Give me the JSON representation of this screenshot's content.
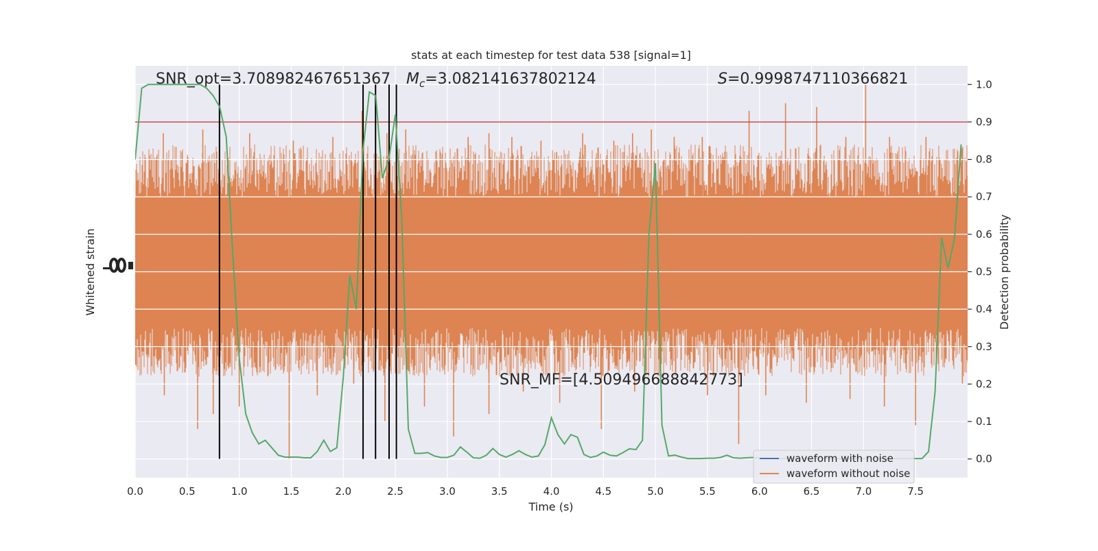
{
  "chart_data": {
    "type": "line",
    "title": "stats at each timestep for test data 538 [signal=1]",
    "xlabel": "Time (s)",
    "ylabel_left": "Whitened strain",
    "ylabel_right": "Detection probability",
    "xlim": [
      0.0,
      8.0
    ],
    "ylim_right": [
      -0.05,
      1.05
    ],
    "x_ticks": [
      "0.0",
      "0.5",
      "1.0",
      "1.5",
      "2.0",
      "2.5",
      "3.0",
      "3.5",
      "4.0",
      "4.5",
      "5.0",
      "5.5",
      "6.0",
      "6.5",
      "7.0",
      "7.5"
    ],
    "x_tick_values": [
      0.0,
      0.5,
      1.0,
      1.5,
      2.0,
      2.5,
      3.0,
      3.5,
      4.0,
      4.5,
      5.0,
      5.5,
      6.0,
      6.5,
      7.0,
      7.5
    ],
    "y_right_ticks": [
      "0.0",
      "0.1",
      "0.2",
      "0.3",
      "0.4",
      "0.5",
      "0.6",
      "0.7",
      "0.8",
      "0.9",
      "1.0"
    ],
    "y_right_tick_values": [
      0.0,
      0.1,
      0.2,
      0.3,
      0.4,
      0.5,
      0.6,
      0.7,
      0.8,
      0.9,
      1.0
    ],
    "grid": true,
    "legend_placement": "lower-right",
    "legend": [
      {
        "label": "waveform with noise",
        "color": "#4c72b0"
      },
      {
        "label": "waveform without noise",
        "color": "#dd8452"
      }
    ],
    "annotations": {
      "snr_opt": "SNR_opt=3.708982467651367",
      "mc_symbol": "M",
      "mc_sub": "c",
      "mc_value": "=3.082141637802124",
      "s_symbol": "S",
      "s_value": "=0.9998747110366821",
      "snr_mf": "SNR_MF=[4.509496688842773]"
    },
    "threshold": {
      "y": 0.9,
      "color": "#c44e52"
    },
    "vertical_lines": [
      0.81,
      2.19,
      2.31,
      2.44,
      2.51
    ],
    "detection_probability": {
      "name": "Detection probability",
      "color": "#55a868",
      "x": [
        0.0,
        0.0625,
        0.125,
        0.1875,
        0.25,
        0.3125,
        0.375,
        0.4375,
        0.5,
        0.5625,
        0.625,
        0.6875,
        0.75,
        0.8125,
        0.875,
        0.9375,
        1.0,
        1.0625,
        1.125,
        1.1875,
        1.25,
        1.3125,
        1.375,
        1.4375,
        1.5,
        1.5625,
        1.625,
        1.6875,
        1.75,
        1.8125,
        1.875,
        1.9375,
        2.0,
        2.0625,
        2.125,
        2.1875,
        2.25,
        2.3125,
        2.375,
        2.4375,
        2.5,
        2.5625,
        2.625,
        2.6875,
        2.75,
        2.8125,
        2.875,
        2.9375,
        3.0,
        3.0625,
        3.125,
        3.1875,
        3.25,
        3.3125,
        3.375,
        3.4375,
        3.5,
        3.5625,
        3.625,
        3.6875,
        3.75,
        3.8125,
        3.875,
        3.9375,
        4.0,
        4.0625,
        4.125,
        4.1875,
        4.25,
        4.3125,
        4.375,
        4.4375,
        4.5,
        4.5625,
        4.625,
        4.6875,
        4.75,
        4.8125,
        4.875,
        4.9375,
        5.0,
        5.0625,
        5.125,
        5.1875,
        5.25,
        5.3125,
        5.375,
        5.4375,
        5.5,
        5.5625,
        5.625,
        5.6875,
        5.75,
        5.8125,
        5.875,
        5.9375,
        6.0,
        6.0625,
        6.125,
        6.1875,
        6.25,
        6.3125,
        6.375,
        6.4375,
        6.5,
        6.5625,
        6.625,
        6.6875,
        6.75,
        6.8125,
        6.875,
        6.9375,
        7.0,
        7.0625,
        7.125,
        7.1875,
        7.25,
        7.3125,
        7.375,
        7.4375,
        7.5,
        7.5625,
        7.625,
        7.6875,
        7.75,
        7.8125,
        7.875,
        7.9375
      ],
      "y": [
        0.8,
        0.99,
        1.0,
        1.0,
        1.0,
        1.0,
        1.0,
        1.0,
        1.0,
        1.0,
        1.0,
        0.99,
        0.97,
        0.94,
        0.86,
        0.55,
        0.27,
        0.12,
        0.07,
        0.04,
        0.05,
        0.03,
        0.01,
        0.005,
        0.005,
        0.005,
        0.003,
        0.003,
        0.02,
        0.05,
        0.02,
        0.03,
        0.22,
        0.49,
        0.4,
        0.82,
        0.98,
        0.97,
        0.75,
        0.8,
        0.92,
        0.64,
        0.08,
        0.015,
        0.015,
        0.017,
        0.008,
        0.004,
        0.004,
        0.01,
        0.032,
        0.018,
        0.003,
        0.002,
        0.01,
        0.028,
        0.012,
        0.005,
        0.012,
        0.022,
        0.012,
        0.005,
        0.008,
        0.038,
        0.11,
        0.065,
        0.04,
        0.065,
        0.058,
        0.012,
        0.004,
        0.008,
        0.018,
        0.01,
        0.008,
        0.017,
        0.027,
        0.025,
        0.05,
        0.6,
        0.79,
        0.09,
        0.008,
        0.01,
        0.005,
        0.001,
        0.001,
        0.001,
        0.002,
        0.002,
        0.004,
        0.01,
        0.003,
        0.002,
        0.003,
        0.004,
        0.002,
        0.002,
        0.001,
        0.001,
        0.001,
        0.001,
        0.001,
        0.001,
        0.001,
        0.001,
        0.001,
        0.001,
        0.001,
        0.001,
        0.001,
        0.001,
        0.001,
        0.001,
        0.001,
        0.001,
        0.001,
        0.001,
        0.001,
        0.001,
        0.001,
        0.001,
        0.02,
        0.18,
        0.59,
        0.51,
        0.59,
        0.84
      ]
    },
    "waveform_without_noise": {
      "name": "waveform without noise",
      "color": "#dd8452",
      "spikes_up": [
        [
          0.27,
          0.87
        ],
        [
          0.65,
          0.88
        ],
        [
          1.1,
          0.87
        ],
        [
          1.52,
          0.85
        ],
        [
          1.9,
          0.86
        ],
        [
          2.18,
          0.93
        ],
        [
          2.42,
          0.87
        ],
        [
          2.6,
          0.88
        ],
        [
          2.93,
          0.82
        ],
        [
          3.2,
          0.86
        ],
        [
          3.4,
          0.87
        ],
        [
          3.62,
          0.86
        ],
        [
          3.9,
          0.85
        ],
        [
          4.05,
          0.82
        ],
        [
          4.3,
          0.87
        ],
        [
          4.6,
          0.85
        ],
        [
          4.78,
          0.87
        ],
        [
          4.96,
          0.88
        ],
        [
          5.18,
          0.86
        ],
        [
          5.45,
          0.86
        ],
        [
          5.9,
          0.93
        ],
        [
          6.25,
          0.95
        ],
        [
          6.55,
          0.94
        ],
        [
          6.83,
          0.86
        ],
        [
          7.02,
          1.0
        ],
        [
          7.25,
          0.86
        ],
        [
          7.6,
          0.86
        ]
      ],
      "spikes_down": [
        [
          0.28,
          0.17
        ],
        [
          0.6,
          0.08
        ],
        [
          0.75,
          0.12
        ],
        [
          1.0,
          0.14
        ],
        [
          1.48,
          0.0
        ],
        [
          1.75,
          0.17
        ],
        [
          2.1,
          0.2
        ],
        [
          2.4,
          0.1
        ],
        [
          2.78,
          0.14
        ],
        [
          3.06,
          0.06
        ],
        [
          3.4,
          0.12
        ],
        [
          3.73,
          0.18
        ],
        [
          4.08,
          0.15
        ],
        [
          4.48,
          0.08
        ],
        [
          4.8,
          0.18
        ],
        [
          5.5,
          0.17
        ],
        [
          5.8,
          0.04
        ],
        [
          6.06,
          0.17
        ],
        [
          6.45,
          0.15
        ],
        [
          6.87,
          0.16
        ],
        [
          7.2,
          0.14
        ],
        [
          7.5,
          0.09
        ],
        [
          7.95,
          0.2
        ]
      ]
    }
  }
}
